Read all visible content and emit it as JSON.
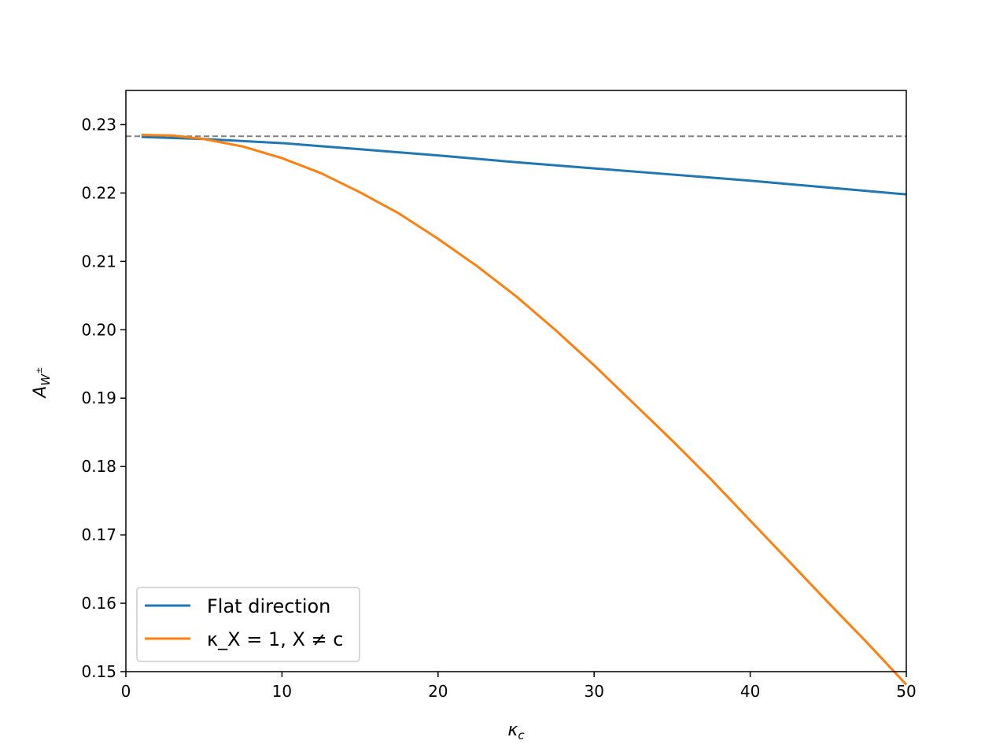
{
  "chart_data": {
    "type": "line",
    "xlabel": "κ_c",
    "ylabel": "A_{W±}",
    "xlim": [
      0,
      50
    ],
    "ylim": [
      0.15,
      0.235
    ],
    "x_ticks": [
      "0",
      "10",
      "20",
      "30",
      "40",
      "50"
    ],
    "y_ticks": [
      "0.15",
      "0.16",
      "0.17",
      "0.18",
      "0.19",
      "0.20",
      "0.21",
      "0.22",
      "0.23"
    ],
    "reference_line": {
      "y": 0.2283,
      "style": "dashed",
      "color": "#808080"
    },
    "legend_position": "lower-left",
    "series": [
      {
        "name": "Flat direction",
        "color": "#1f77b4",
        "x": [
          1,
          5,
          10,
          15,
          20,
          25,
          30,
          35,
          40,
          45,
          50
        ],
        "y": [
          0.2282,
          0.2279,
          0.2273,
          0.2264,
          0.2255,
          0.2245,
          0.2236,
          0.2227,
          0.2218,
          0.2208,
          0.2198
        ]
      },
      {
        "name": "κ_X = 1, X ≠ c",
        "color": "#ff7f0e",
        "x": [
          1,
          3,
          5,
          7.5,
          10,
          12.5,
          15,
          17.5,
          20,
          22.5,
          25,
          27.5,
          30,
          32.5,
          35,
          37.5,
          40,
          42.5,
          45,
          47.5,
          50
        ],
        "y": [
          0.2285,
          0.2284,
          0.2279,
          0.2268,
          0.2251,
          0.2229,
          0.2201,
          0.217,
          0.2133,
          0.2093,
          0.2049,
          0.2,
          0.1948,
          0.1893,
          0.1838,
          0.1781,
          0.1721,
          0.1661,
          0.1601,
          0.1542,
          0.1481
        ]
      }
    ]
  },
  "legend": {
    "item1_label": "Flat direction",
    "item2_label": "κ_X = 1, X ≠ c"
  }
}
